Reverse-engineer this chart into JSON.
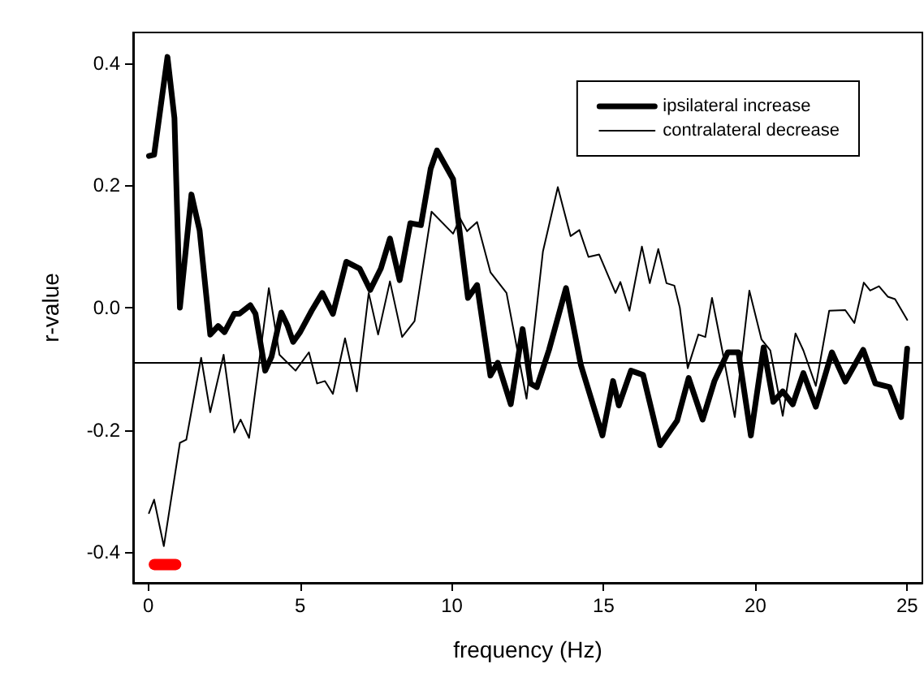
{
  "chart_data": {
    "type": "line",
    "xlabel": "frequency (Hz)",
    "ylabel": "r-value",
    "xlim": [
      -0.5,
      25.5
    ],
    "ylim": [
      -0.45,
      0.45
    ],
    "xticks": [
      0,
      5,
      10,
      15,
      20,
      25
    ],
    "yticks": [
      -0.4,
      -0.2,
      {
        "value": 0,
        "label": "0.0"
      },
      0.2,
      0.4
    ],
    "grid": false,
    "legend": "top right",
    "marker": "none",
    "line_style": "solid",
    "series": [
      {
        "name": "ipsilateral increase",
        "color": "#000000",
        "x": [
          0.02,
          0.19,
          0.63,
          0.86,
          1.04,
          1.42,
          1.69,
          2.04,
          2.3,
          2.51,
          2.83,
          3.0,
          3.36,
          3.53,
          3.85,
          4.06,
          4.38,
          4.59,
          4.77,
          5.0,
          5.38,
          5.73,
          6.08,
          6.52,
          6.96,
          7.31,
          7.66,
          7.96,
          8.28,
          8.63,
          8.98,
          9.3,
          9.51,
          10.04,
          10.53,
          10.83,
          11.27,
          11.51,
          11.94,
          12.33,
          12.59,
          12.8,
          13.2,
          13.76,
          14.25,
          14.96,
          15.31,
          15.5,
          15.9,
          16.3,
          16.86,
          17.42,
          17.8,
          18.26,
          18.65,
          19.09,
          19.44,
          19.85,
          20.27,
          20.59,
          20.9,
          21.23,
          21.58,
          21.99,
          22.52,
          22.96,
          23.55,
          23.95,
          24.42,
          24.8,
          25.0
        ],
        "values": [
          0.248,
          0.25,
          0.41,
          0.31,
          0.0,
          0.185,
          0.126,
          -0.044,
          -0.03,
          -0.04,
          -0.01,
          -0.01,
          0.004,
          -0.01,
          -0.103,
          -0.08,
          -0.008,
          -0.03,
          -0.056,
          -0.04,
          -0.005,
          0.024,
          -0.01,
          0.075,
          0.064,
          0.029,
          0.064,
          0.113,
          0.045,
          0.138,
          0.135,
          0.227,
          0.257,
          0.21,
          0.016,
          0.037,
          -0.111,
          -0.09,
          -0.158,
          -0.035,
          -0.124,
          -0.13,
          -0.069,
          0.032,
          -0.094,
          -0.209,
          -0.12,
          -0.16,
          -0.103,
          -0.11,
          -0.225,
          -0.185,
          -0.115,
          -0.183,
          -0.12,
          -0.073,
          -0.073,
          -0.209,
          -0.065,
          -0.154,
          -0.137,
          -0.158,
          -0.107,
          -0.162,
          -0.073,
          -0.121,
          -0.069,
          -0.124,
          -0.13,
          -0.179,
          -0.067
        ]
      },
      {
        "name": "contralateral decrease",
        "color": "#000000",
        "x": [
          0.02,
          0.19,
          0.51,
          1.04,
          1.25,
          1.74,
          2.04,
          2.48,
          2.83,
          3.04,
          3.32,
          3.97,
          4.32,
          4.85,
          5.29,
          5.56,
          5.82,
          6.08,
          6.48,
          6.87,
          7.26,
          7.57,
          7.96,
          8.36,
          8.77,
          9.33,
          10.04,
          10.27,
          10.5,
          10.83,
          11.27,
          11.8,
          12.46,
          13.0,
          13.49,
          13.91,
          14.2,
          14.5,
          14.85,
          15.39,
          15.55,
          15.85,
          16.26,
          16.52,
          16.8,
          17.07,
          17.33,
          17.51,
          17.77,
          18.12,
          18.35,
          18.57,
          18.92,
          19.32,
          19.8,
          20.2,
          20.49,
          20.9,
          21.32,
          21.58,
          21.99,
          22.43,
          22.96,
          23.26,
          23.57,
          23.78,
          24.07,
          24.36,
          24.6,
          25.0
        ],
        "values": [
          -0.336,
          -0.314,
          -0.39,
          -0.221,
          -0.216,
          -0.082,
          -0.171,
          -0.077,
          -0.204,
          -0.183,
          -0.213,
          0.032,
          -0.077,
          -0.103,
          -0.073,
          -0.124,
          -0.12,
          -0.141,
          -0.05,
          -0.137,
          0.024,
          -0.044,
          0.043,
          -0.048,
          -0.022,
          0.157,
          0.121,
          0.146,
          0.125,
          0.14,
          0.058,
          0.024,
          -0.149,
          0.092,
          0.197,
          0.117,
          0.127,
          0.083,
          0.087,
          0.024,
          0.042,
          -0.005,
          0.1,
          0.04,
          0.096,
          0.04,
          0.036,
          0.0,
          -0.099,
          -0.044,
          -0.048,
          0.016,
          -0.073,
          -0.179,
          0.028,
          -0.052,
          -0.07,
          -0.177,
          -0.042,
          -0.07,
          -0.128,
          -0.005,
          -0.004,
          -0.025,
          0.041,
          0.028,
          0.035,
          0.018,
          0.014,
          -0.02
        ]
      },
      {
        "color": "#ff0000",
        "x": [
          0.2,
          0.9
        ],
        "values": [
          -0.42,
          -0.42
        ]
      }
    ],
    "ref_lines": [
      {
        "axis": "y",
        "value": -0.09,
        "color": "#000000"
      }
    ]
  }
}
